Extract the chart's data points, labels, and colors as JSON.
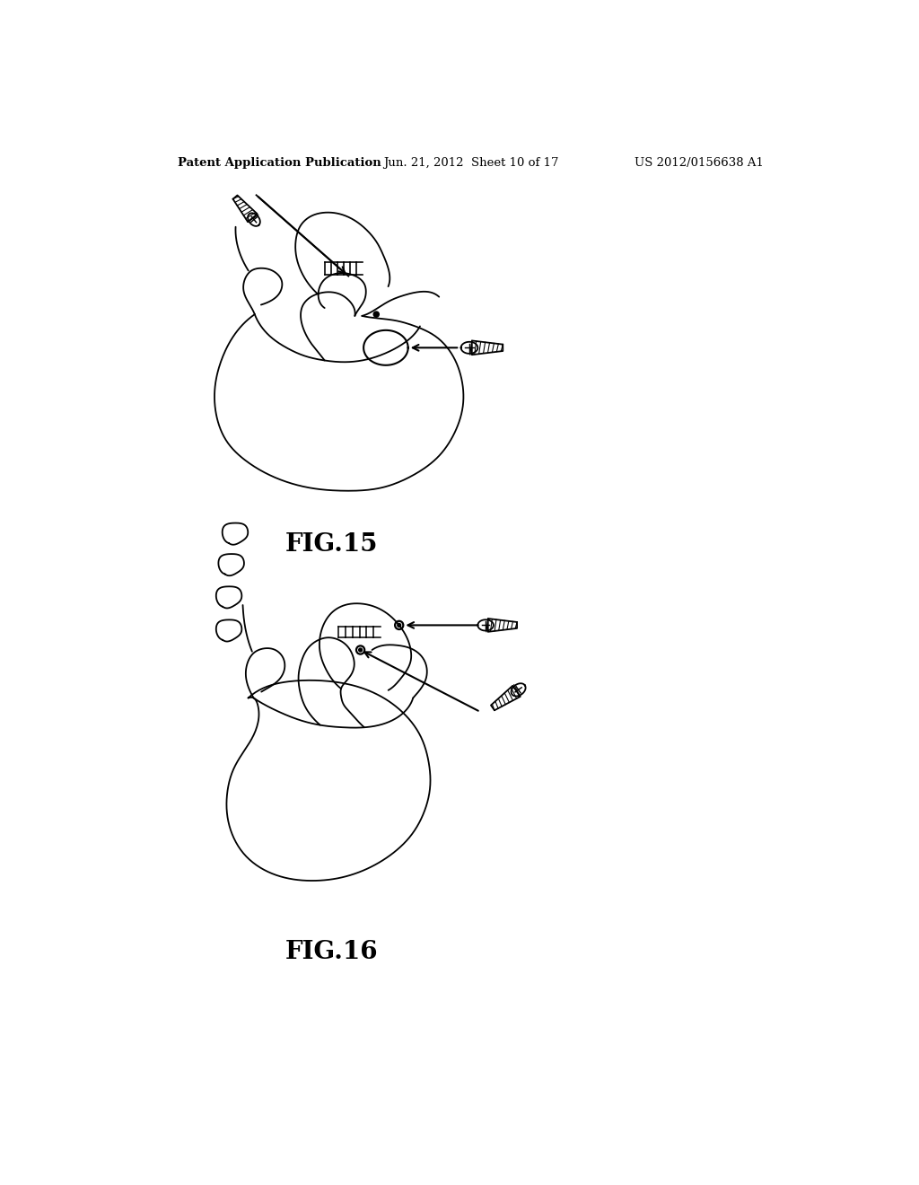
{
  "background_color": "#ffffff",
  "header_left": "Patent Application Publication",
  "header_center": "Jun. 21, 2012  Sheet 10 of 17",
  "header_right": "US 2012/0156638 A1",
  "fig15_label": "FIG.15",
  "fig16_label": "FIG.16",
  "line_color": "#000000",
  "line_width": 1.3,
  "header_fontsize": 9.5,
  "fig_label_fontsize": 20
}
